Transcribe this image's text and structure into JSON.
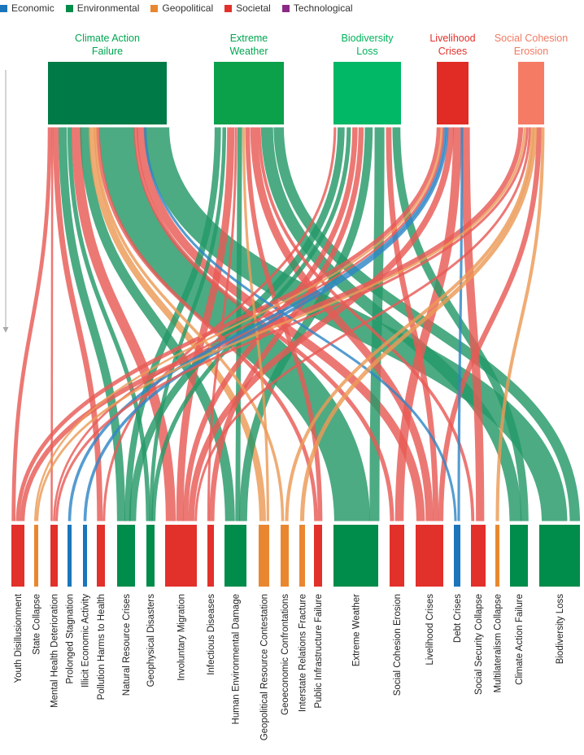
{
  "legend": [
    {
      "label": "Economic",
      "color": "#1a75bb"
    },
    {
      "label": "Environmental",
      "color": "#008c4a"
    },
    {
      "label": "Geopolitical",
      "color": "#e98730"
    },
    {
      "label": "Societal",
      "color": "#e2302b"
    },
    {
      "label": "Technological",
      "color": "#8b2a86"
    }
  ],
  "chart_data": {
    "type": "sankey",
    "sources": [
      {
        "id": "climate",
        "label": [
          "Climate Action",
          "Failure"
        ],
        "category": "Environmental",
        "color": "#007a46",
        "label_color": "#00a651"
      },
      {
        "id": "extreme",
        "label": [
          "Extreme",
          "Weather"
        ],
        "category": "Environmental",
        "color": "#0aa14a",
        "label_color": "#00a651"
      },
      {
        "id": "biodiversity",
        "label": [
          "Biodiversity",
          "Loss"
        ],
        "category": "Environmental",
        "color": "#00b866",
        "label_color": "#00b25a"
      },
      {
        "id": "livelihood",
        "label": [
          "Livelihood",
          "Crises"
        ],
        "category": "Societal",
        "color": "#e12b25",
        "label_color": "#e2302b"
      },
      {
        "id": "cohesion",
        "label": [
          "Social Cohesion",
          "Erosion"
        ],
        "category": "Societal",
        "color": "#f57b65",
        "label_color": "#f07a62"
      }
    ],
    "targets": [
      {
        "label": "Youth Disillusionment",
        "category": "Societal",
        "color": "#e2302b"
      },
      {
        "label": "State Collapse",
        "category": "Geopolitical",
        "color": "#e98730"
      },
      {
        "label": "Mental Health Deterioration",
        "category": "Societal",
        "color": "#e2302b"
      },
      {
        "label": "Prolonged Stagnation",
        "category": "Economic",
        "color": "#1a75bb"
      },
      {
        "label": "Illicit Economic Activity",
        "category": "Economic",
        "color": "#1a75bb"
      },
      {
        "label": "Pollution Harms to Health",
        "category": "Societal",
        "color": "#e2302b"
      },
      {
        "label": "Natural Resource Crises",
        "category": "Environmental",
        "color": "#008c4a"
      },
      {
        "label": "Geophysical Disasters",
        "category": "Environmental",
        "color": "#008c4a"
      },
      {
        "label": "Involuntary Migration",
        "category": "Societal",
        "color": "#e2302b"
      },
      {
        "label": "Infectious Diseases",
        "category": "Societal",
        "color": "#e2302b"
      },
      {
        "label": "Human Environmental Damage",
        "category": "Environmental",
        "color": "#008c4a"
      },
      {
        "label": "Geopolitical Resource Contestation",
        "category": "Geopolitical",
        "color": "#e98730"
      },
      {
        "label": "Geoeconomic Confrontations",
        "category": "Geopolitical",
        "color": "#e98730"
      },
      {
        "label": "Interstate Relations Fracture",
        "category": "Geopolitical",
        "color": "#e98730"
      },
      {
        "label": "Public Infrastructure Failure",
        "category": "Societal",
        "color": "#e2302b"
      },
      {
        "label": "Extreme Weather",
        "category": "Environmental",
        "color": "#008c4a"
      },
      {
        "label": "Social Cohesion Erosion",
        "category": "Societal",
        "color": "#e2302b"
      },
      {
        "label": "Livelihood Crises",
        "category": "Societal",
        "color": "#e2302b"
      },
      {
        "label": "Debt Crises",
        "category": "Economic",
        "color": "#1a75bb"
      },
      {
        "label": "Social Security Collapse",
        "category": "Societal",
        "color": "#e2302b"
      },
      {
        "label": "Multilateralism Collapse",
        "category": "Geopolitical",
        "color": "#e98730"
      },
      {
        "label": "Climate Action Failure",
        "category": "Environmental",
        "color": "#008c4a"
      },
      {
        "label": "Biodiversity Loss",
        "category": "Environmental",
        "color": "#008c4a"
      }
    ],
    "links": [
      {
        "source": "climate",
        "target": "Extreme Weather",
        "value": 20
      },
      {
        "source": "climate",
        "target": "Biodiversity Loss",
        "value": 12
      },
      {
        "source": "climate",
        "target": "Natural Resource Crises",
        "value": 5
      },
      {
        "source": "climate",
        "target": "Involuntary Migration",
        "value": 5
      },
      {
        "source": "climate",
        "target": "Human Environmental Damage",
        "value": 5
      },
      {
        "source": "climate",
        "target": "Geophysical Disasters",
        "value": 3
      },
      {
        "source": "climate",
        "target": "Livelihood Crises",
        "value": 4
      },
      {
        "source": "climate",
        "target": "Youth Disillusionment",
        "value": 2
      },
      {
        "source": "climate",
        "target": "Pollution Harms to Health",
        "value": 3
      },
      {
        "source": "climate",
        "target": "Geopolitical Resource Contestation",
        "value": 3
      },
      {
        "source": "climate",
        "target": "Mental Health Deterioration",
        "value": 1
      },
      {
        "source": "climate",
        "target": "Social Cohesion Erosion",
        "value": 2
      },
      {
        "source": "climate",
        "target": "Public Infrastructure Failure",
        "value": 2
      },
      {
        "source": "climate",
        "target": "Geoeconomic Confrontations",
        "value": 1
      },
      {
        "source": "climate",
        "target": "Debt Crises",
        "value": 1
      },
      {
        "source": "extreme",
        "target": "Climate Action Failure",
        "value": 5
      },
      {
        "source": "extreme",
        "target": "Biodiversity Loss",
        "value": 4
      },
      {
        "source": "extreme",
        "target": "Involuntary Migration",
        "value": 3
      },
      {
        "source": "extreme",
        "target": "Natural Resource Crises",
        "value": 3
      },
      {
        "source": "extreme",
        "target": "Livelihood Crises",
        "value": 3
      },
      {
        "source": "extreme",
        "target": "Human Environmental Damage",
        "value": 2
      },
      {
        "source": "extreme",
        "target": "Geophysical Disasters",
        "value": 2
      },
      {
        "source": "extreme",
        "target": "Public Infrastructure Failure",
        "value": 2
      },
      {
        "source": "extreme",
        "target": "Infectious Diseases",
        "value": 1
      },
      {
        "source": "extreme",
        "target": "Geopolitical Resource Contestation",
        "value": 1
      },
      {
        "source": "extreme",
        "target": "Social Security Collapse",
        "value": 1
      },
      {
        "source": "biodiversity",
        "target": "Extreme Weather",
        "value": 4
      },
      {
        "source": "biodiversity",
        "target": "Climate Action Failure",
        "value": 3
      },
      {
        "source": "biodiversity",
        "target": "Natural Resource Crises",
        "value": 3
      },
      {
        "source": "biodiversity",
        "target": "Human Environmental Damage",
        "value": 3
      },
      {
        "source": "biodiversity",
        "target": "Geophysical Disasters",
        "value": 2
      },
      {
        "source": "biodiversity",
        "target": "Infectious Diseases",
        "value": 2
      },
      {
        "source": "biodiversity",
        "target": "Livelihood Crises",
        "value": 2
      },
      {
        "source": "biodiversity",
        "target": "Pollution Harms to Health",
        "value": 1
      },
      {
        "source": "biodiversity",
        "target": "Involuntary Migration",
        "value": 2
      },
      {
        "source": "livelihood",
        "target": "Social Cohesion Erosion",
        "value": 4
      },
      {
        "source": "livelihood",
        "target": "Involuntary Migration",
        "value": 3
      },
      {
        "source": "livelihood",
        "target": "Social Security Collapse",
        "value": 3
      },
      {
        "source": "livelihood",
        "target": "Youth Disillusionment",
        "value": 2
      },
      {
        "source": "livelihood",
        "target": "Debt Crises",
        "value": 1
      },
      {
        "source": "livelihood",
        "target": "Prolonged Stagnation",
        "value": 1
      },
      {
        "source": "livelihood",
        "target": "Illicit Economic Activity",
        "value": 1
      },
      {
        "source": "livelihood",
        "target": "Mental Health Deterioration",
        "value": 1
      },
      {
        "source": "livelihood",
        "target": "State Collapse",
        "value": 1
      },
      {
        "source": "cohesion",
        "target": "Livelihood Crises",
        "value": 2
      },
      {
        "source": "cohesion",
        "target": "Youth Disillusionment",
        "value": 2
      },
      {
        "source": "cohesion",
        "target": "Involuntary Migration",
        "value": 1
      },
      {
        "source": "cohesion",
        "target": "Mental Health Deterioration",
        "value": 1
      },
      {
        "source": "cohesion",
        "target": "Interstate Relations Fracture",
        "value": 1
      },
      {
        "source": "cohesion",
        "target": "Multilateralism Collapse",
        "value": 1
      },
      {
        "source": "cohesion",
        "target": "Geoeconomic Confrontations",
        "value": 1
      },
      {
        "source": "cohesion",
        "target": "State Collapse",
        "value": 1
      }
    ]
  }
}
